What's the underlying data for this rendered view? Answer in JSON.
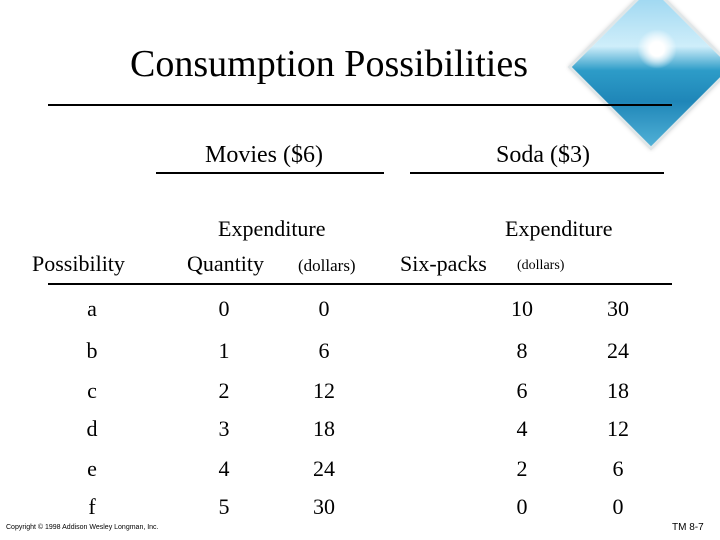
{
  "title": "Consumption Possibilities",
  "groups": {
    "movies": "Movies ($6)",
    "soda": "Soda ($3)"
  },
  "headers": {
    "possibility": "Possibility",
    "expenditure_movies": "Expenditure",
    "quantity": "Quantity",
    "dollars_movies": "(dollars)",
    "expenditure_soda": "Expenditure",
    "six_packs": "Six-packs",
    "dollars_soda": "(dollars)"
  },
  "rows": [
    {
      "possibility": "a",
      "movie_qty": "0",
      "movie_exp": "0",
      "soda_qty": "10",
      "soda_exp": "30"
    },
    {
      "possibility": "b",
      "movie_qty": "1",
      "movie_exp": "6",
      "soda_qty": "8",
      "soda_exp": "24"
    },
    {
      "possibility": "c",
      "movie_qty": "2",
      "movie_exp": "12",
      "soda_qty": "6",
      "soda_exp": "18"
    },
    {
      "possibility": "d",
      "movie_qty": "3",
      "movie_exp": "18",
      "soda_qty": "4",
      "soda_exp": "12"
    },
    {
      "possibility": "e",
      "movie_qty": "4",
      "movie_exp": "24",
      "soda_qty": "2",
      "soda_exp": "6"
    },
    {
      "possibility": "f",
      "movie_qty": "5",
      "movie_exp": "30",
      "soda_qty": "0",
      "soda_exp": "0"
    }
  ],
  "footer": {
    "copyright": "Copyright © 1998 Addison Wesley Longman, Inc.",
    "slide_id": "TM 8-7"
  }
}
